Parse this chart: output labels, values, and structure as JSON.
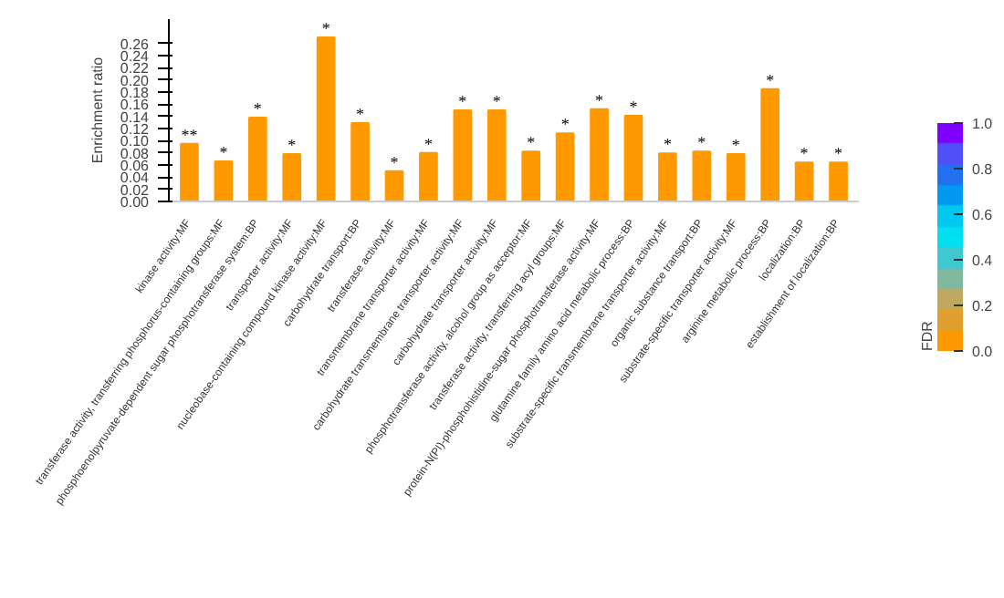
{
  "chart_data": {
    "type": "bar",
    "ylabel": "Enrichment ratio",
    "clabel": "FDR",
    "categories": [
      "kinase activity:MF",
      "transferase activity, transferring phosphorus-containing groups:MF",
      "phosphoenolpyruvate-dependent sugar phosphotransferase system:BP",
      "transporter activity:MF",
      "nucleobase-containing compound kinase activity:MF",
      "carbohydrate transport:BP",
      "transferase activity:MF",
      "transmembrane transporter activity:MF",
      "carbohydrate transmembrane transporter activity:MF",
      "carbohydrate transporter activity:MF",
      "phosphotransferase activity, alcohol group as acceptor:MF",
      "transferase activity, transferring acyl groups:MF",
      "protein-N(PI)-phosphohistidine-sugar phosphotransferase activity:MF",
      "glutamine family amino acid metabolic process:BP",
      "substrate-specific transmembrane transporter activity:MF",
      "organic substance transport:BP",
      "substrate-specific transporter activity:MF",
      "arginine metabolic process:BP",
      "localization:BP",
      "establishment of localization:BP"
    ],
    "values": [
      0.095,
      0.066,
      0.138,
      0.078,
      0.27,
      0.129,
      0.05,
      0.08,
      0.15,
      0.15,
      0.082,
      0.112,
      0.152,
      0.141,
      0.079,
      0.082,
      0.078,
      0.185,
      0.064,
      0.064
    ],
    "color": "#ff9900",
    "ylim": [
      0,
      0.3
    ],
    "yticks": [
      {
        "value": 0,
        "label": "0.00"
      },
      {
        "value": 0.02,
        "label": "0.02"
      },
      {
        "value": 0.04,
        "label": "0.04"
      },
      {
        "value": 0.06,
        "label": "0.06"
      },
      {
        "value": 0.08,
        "label": "0.08"
      },
      {
        "value": 0.1,
        "label": "0.10"
      },
      {
        "value": 0.12,
        "label": "0.12"
      },
      {
        "value": 0.14,
        "label": "0.14"
      },
      {
        "value": 0.16,
        "label": "0.16"
      },
      {
        "value": 0.18,
        "label": "0.18"
      },
      {
        "value": 0.2,
        "label": "0.20"
      },
      {
        "value": 0.22,
        "label": "0.22"
      },
      {
        "value": 0.24,
        "label": "0.24"
      },
      {
        "value": 0.26,
        "label": "0.26"
      }
    ],
    "clim": [
      0,
      1
    ],
    "cticks": [
      {
        "value": 0,
        "label": "0.0"
      },
      {
        "value": 0.2,
        "label": "0.2"
      },
      {
        "value": 0.4,
        "label": "0.4"
      },
      {
        "value": 0.6,
        "label": "0.6"
      },
      {
        "value": 0.8,
        "label": "0.8"
      },
      {
        "value": 1,
        "label": "1.0"
      }
    ],
    "grid": false,
    "annotations": [
      {
        "text": "**",
        "x": "kinase activity:MF",
        "y": 0.095
      },
      {
        "text": "*",
        "x": "transferase activity, transferring phosphorus-containing groups:MF",
        "y": 0.066
      },
      {
        "text": "*",
        "x": "phosphoenolpyruvate-dependent sugar phosphotransferase system:BP",
        "y": 0.138
      },
      {
        "text": "*",
        "x": "transporter activity:MF",
        "y": 0.078
      },
      {
        "text": "*",
        "x": "nucleobase-containing compound kinase activity:MF",
        "y": 0.27
      },
      {
        "text": "*",
        "x": "carbohydrate transport:BP",
        "y": 0.129
      },
      {
        "text": "*",
        "x": "transferase activity:MF",
        "y": 0.05
      },
      {
        "text": "*",
        "x": "transmembrane transporter activity:MF",
        "y": 0.08
      },
      {
        "text": "*",
        "x": "carbohydrate transmembrane transporter activity:MF",
        "y": 0.15
      },
      {
        "text": "*",
        "x": "carbohydrate transporter activity:MF",
        "y": 0.15
      },
      {
        "text": "*",
        "x": "phosphotransferase activity, alcohol group as acceptor:MF",
        "y": 0.082
      },
      {
        "text": "*",
        "x": "transferase activity, transferring acyl groups:MF",
        "y": 0.112
      },
      {
        "text": "*",
        "x": "protein-N(PI)-phosphohistidine-sugar phosphotransferase activity:MF",
        "y": 0.152
      },
      {
        "text": "*",
        "x": "glutamine family amino acid metabolic process:BP",
        "y": 0.141
      },
      {
        "text": "*",
        "x": "substrate-specific transmembrane transporter activity:MF",
        "y": 0.079
      },
      {
        "text": "*",
        "x": "organic substance transport:BP",
        "y": 0.082
      },
      {
        "text": "*",
        "x": "substrate-specific transporter activity:MF",
        "y": 0.078
      },
      {
        "text": "*",
        "x": "arginine metabolic process:BP",
        "y": 0.185
      },
      {
        "text": "*",
        "x": "localization:BP",
        "y": 0.064
      },
      {
        "text": "*",
        "x": "establishment of localization:BP",
        "y": 0.064
      }
    ]
  }
}
